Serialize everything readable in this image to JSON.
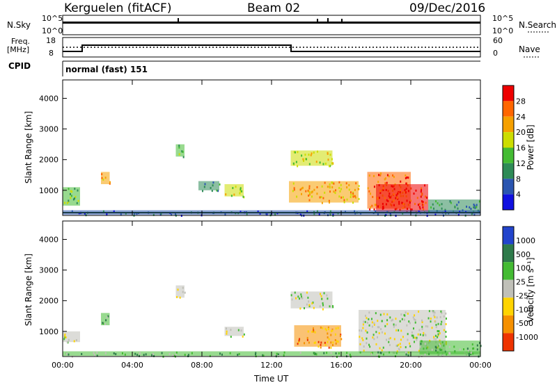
{
  "header": {
    "station": "Kerguelen (fitACF)",
    "beam": "Beam 02",
    "date": "09/Dec/2016"
  },
  "panels": {
    "nsky_label": "N.Sky",
    "nsearch_label": "N.Search",
    "nsky_ticks": [
      "10^5",
      "10^0"
    ],
    "nsearch_ticks": [
      "10^5",
      "10^0"
    ],
    "freq_label_line1": "Freq.",
    "freq_label_line2": "[MHz]",
    "freq_ticks": [
      "18",
      "8"
    ],
    "nave_label": "Nave",
    "nave_ticks": [
      "60",
      "0"
    ],
    "cpid_label": "CPID",
    "cpid_text": "normal (fast) 151"
  },
  "colors": {
    "power": [
      "#1010e0",
      "#2a55b0",
      "#2e8b57",
      "#44bb33",
      "#ccdd00",
      "#f5a000",
      "#ff6600",
      "#ee0000"
    ],
    "velocity": [
      "#2244cc",
      "#2e7a4a",
      "#44bb33",
      "#c0c0b8",
      "#ffd400",
      "#f59000",
      "#ee3300"
    ]
  },
  "chart_data": [
    {
      "type": "heatmap",
      "name": "power",
      "ylabel": "Slant Range [km]",
      "yticks": [
        "4000",
        "3000",
        "2000",
        "1000"
      ],
      "ylim": [
        180,
        4600
      ],
      "xticks": [
        "00:00",
        "04:00",
        "08:00",
        "12:00",
        "16:00",
        "20:00",
        "00:00"
      ],
      "xlabel": "Time UT",
      "colorbar_label": "Power [dB]",
      "colorbar_ticks": [
        "28",
        "24",
        "20",
        "16",
        "12",
        "8",
        "4"
      ],
      "clim": [
        0,
        30
      ],
      "regions": [
        {
          "t0": 0.0,
          "t1": 1.0,
          "r0": 500,
          "r1": 1100,
          "level": 3
        },
        {
          "t0": 2.2,
          "t1": 2.7,
          "r0": 1200,
          "r1": 1600,
          "level": 5
        },
        {
          "t0": 6.5,
          "t1": 7.0,
          "r0": 2100,
          "r1": 2500,
          "level": 3
        },
        {
          "t0": 7.8,
          "t1": 9.0,
          "r0": 1000,
          "r1": 1300,
          "level": 2
        },
        {
          "t0": 9.3,
          "t1": 10.4,
          "r0": 800,
          "r1": 1200,
          "level": 4
        },
        {
          "t0": 13.1,
          "t1": 15.5,
          "r0": 1800,
          "r1": 2300,
          "level": 4
        },
        {
          "t0": 13.0,
          "t1": 17.0,
          "r0": 600,
          "r1": 1300,
          "level": 5
        },
        {
          "t0": 17.5,
          "t1": 20.0,
          "r0": 400,
          "r1": 1600,
          "level": 6
        },
        {
          "t0": 18.0,
          "t1": 21.0,
          "r0": 300,
          "r1": 1200,
          "level": 7
        },
        {
          "t0": 21.0,
          "t1": 24.0,
          "r0": 250,
          "r1": 700,
          "level": 2
        },
        {
          "t0": 0.0,
          "t1": 24.0,
          "r0": 200,
          "r1": 350,
          "level": 1
        }
      ]
    },
    {
      "type": "heatmap",
      "name": "velocity",
      "ylabel": "Slant Range [km]",
      "yticks": [
        "4000",
        "3000",
        "2000",
        "1000"
      ],
      "ylim": [
        180,
        4600
      ],
      "xticks": [
        "00:00",
        "04:00",
        "08:00",
        "12:00",
        "16:00",
        "20:00",
        "00:00"
      ],
      "xlabel": "Time UT",
      "colorbar_label": "Velocity [m s⁻¹]",
      "colorbar_ticks": [
        "1000",
        "500",
        "100",
        "25",
        "-25",
        "-100",
        "-500",
        "-1000"
      ],
      "clim": [
        -1000,
        1000
      ],
      "regions": [
        {
          "t0": 0.0,
          "t1": 1.0,
          "r0": 650,
          "r1": 1000,
          "level": 3
        },
        {
          "t0": 2.2,
          "t1": 2.7,
          "r0": 1200,
          "r1": 1600,
          "level": 2
        },
        {
          "t0": 6.5,
          "t1": 7.0,
          "r0": 2100,
          "r1": 2500,
          "level": 3
        },
        {
          "t0": 9.3,
          "t1": 10.4,
          "r0": 850,
          "r1": 1150,
          "level": 3
        },
        {
          "t0": 13.1,
          "t1": 15.5,
          "r0": 1750,
          "r1": 2300,
          "level": 3
        },
        {
          "t0": 13.3,
          "t1": 16.0,
          "r0": 500,
          "r1": 1200,
          "level": 5
        },
        {
          "t0": 17.0,
          "t1": 22.0,
          "r0": 300,
          "r1": 1700,
          "level": 3
        },
        {
          "t0": 20.5,
          "t1": 24.0,
          "r0": 250,
          "r1": 700,
          "level": 2
        },
        {
          "t0": 0.0,
          "t1": 24.0,
          "r0": 200,
          "r1": 350,
          "level": 2
        }
      ]
    }
  ]
}
